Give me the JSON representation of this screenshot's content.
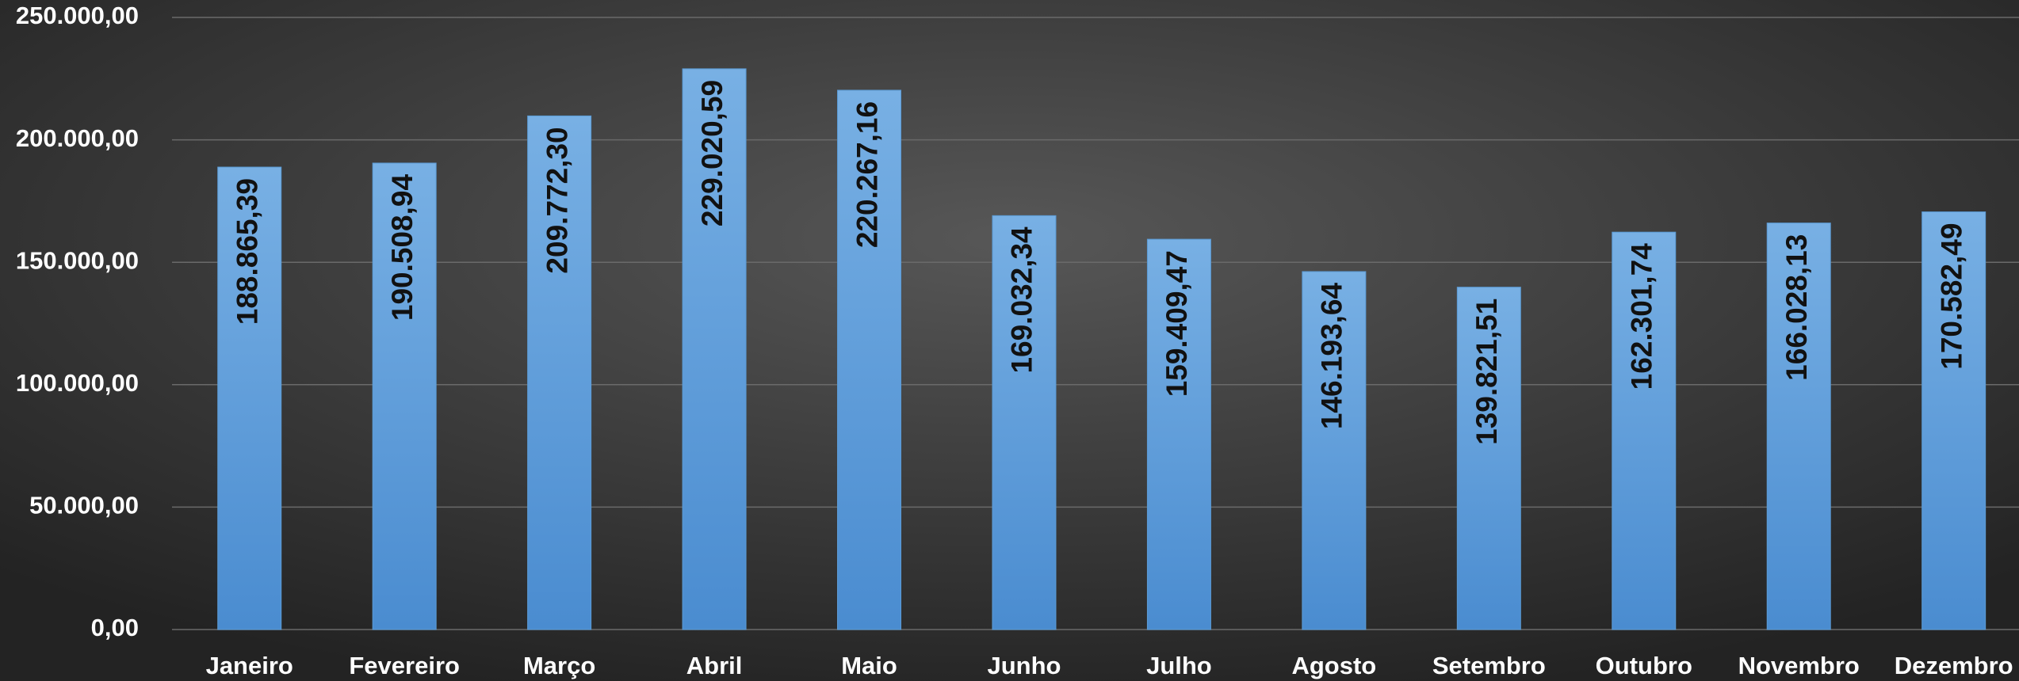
{
  "chart_data": {
    "type": "bar",
    "categories": [
      "Janeiro",
      "Fevereiro",
      "Março",
      "Abril",
      "Maio",
      "Junho",
      "Julho",
      "Agosto",
      "Setembro",
      "Outubro",
      "Novembro",
      "Dezembro"
    ],
    "values": [
      188865.39,
      190508.94,
      209772.3,
      229020.59,
      220267.16,
      169032.34,
      159409.47,
      146193.64,
      139821.51,
      162301.74,
      166028.13,
      170582.49
    ],
    "value_labels": [
      "188.865,39",
      "190.508,94",
      "209.772,30",
      "229.020,59",
      "220.267,16",
      "169.032,34",
      "159.409,47",
      "146.193,64",
      "139.821,51",
      "162.301,74",
      "166.028,13",
      "170.582,49"
    ],
    "color": "#5b9bd5",
    "ylim": [
      0,
      250000
    ],
    "yticks": [
      {
        "value": 0,
        "label": "0,00"
      },
      {
        "value": 50000,
        "label": "50.000,00"
      },
      {
        "value": 100000,
        "label": "100.000,00"
      },
      {
        "value": 150000,
        "label": "150.000,00"
      },
      {
        "value": 200000,
        "label": "200.000,00"
      },
      {
        "value": 250000,
        "label": "250.000,00"
      }
    ],
    "grid": true
  }
}
